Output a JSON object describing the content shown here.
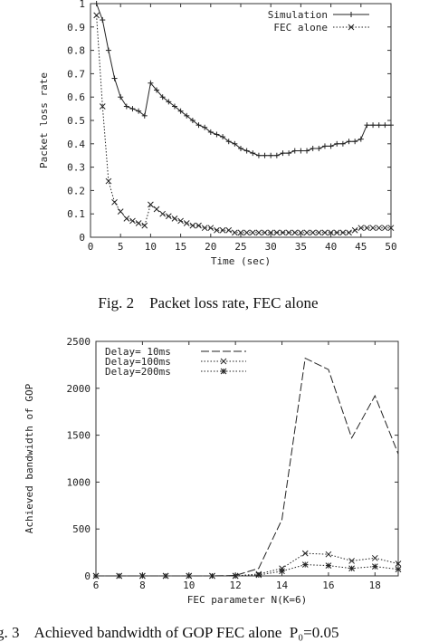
{
  "chart_data": [
    {
      "type": "line",
      "xlabel": "Time (sec)",
      "ylabel": "Packet loss rate",
      "xlim": [
        0,
        50
      ],
      "ylim": [
        0,
        1
      ],
      "xticks": [
        "0",
        "5",
        "10",
        "15",
        "20",
        "25",
        "30",
        "35",
        "40",
        "45",
        "50"
      ],
      "yticks": [
        "0",
        "0.1",
        "0.2",
        "0.3",
        "0.4",
        "0.5",
        "0.6",
        "0.7",
        "0.8",
        "0.9",
        "1"
      ],
      "grid": false,
      "legend_position": "top-right",
      "series": [
        {
          "name": "Simulation",
          "style": "solid-plus",
          "x": [
            1,
            2,
            3,
            4,
            5,
            6,
            7,
            8,
            9,
            10,
            11,
            12,
            13,
            14,
            15,
            16,
            17,
            18,
            19,
            20,
            21,
            22,
            23,
            24,
            25,
            26,
            27,
            28,
            29,
            30,
            31,
            32,
            33,
            34,
            35,
            36,
            37,
            38,
            39,
            40,
            41,
            42,
            43,
            44,
            45,
            46,
            47,
            48,
            49,
            50
          ],
          "y": [
            1.0,
            0.93,
            0.8,
            0.68,
            0.6,
            0.56,
            0.55,
            0.54,
            0.52,
            0.66,
            0.63,
            0.6,
            0.58,
            0.56,
            0.54,
            0.52,
            0.5,
            0.48,
            0.47,
            0.45,
            0.44,
            0.43,
            0.41,
            0.4,
            0.38,
            0.37,
            0.36,
            0.35,
            0.35,
            0.35,
            0.35,
            0.36,
            0.36,
            0.37,
            0.37,
            0.37,
            0.38,
            0.38,
            0.39,
            0.39,
            0.4,
            0.4,
            0.41,
            0.41,
            0.42,
            0.48,
            0.48,
            0.48,
            0.48,
            0.48
          ]
        },
        {
          "name": "FEC alone",
          "style": "dotted-x",
          "x": [
            1,
            2,
            3,
            4,
            5,
            6,
            7,
            8,
            9,
            10,
            11,
            12,
            13,
            14,
            15,
            16,
            17,
            18,
            19,
            20,
            21,
            22,
            23,
            24,
            25,
            26,
            27,
            28,
            29,
            30,
            31,
            32,
            33,
            34,
            35,
            36,
            37,
            38,
            39,
            40,
            41,
            42,
            43,
            44,
            45,
            46,
            47,
            48,
            49,
            50
          ],
          "y": [
            0.95,
            0.56,
            0.24,
            0.15,
            0.11,
            0.08,
            0.07,
            0.06,
            0.05,
            0.14,
            0.12,
            0.1,
            0.09,
            0.08,
            0.07,
            0.06,
            0.05,
            0.05,
            0.04,
            0.04,
            0.03,
            0.03,
            0.03,
            0.02,
            0.02,
            0.02,
            0.02,
            0.02,
            0.02,
            0.02,
            0.02,
            0.02,
            0.02,
            0.02,
            0.02,
            0.02,
            0.02,
            0.02,
            0.02,
            0.02,
            0.02,
            0.02,
            0.02,
            0.03,
            0.04,
            0.04,
            0.04,
            0.04,
            0.04,
            0.04
          ]
        }
      ]
    },
    {
      "type": "line",
      "xlabel": "FEC parameter N(K=6)",
      "ylabel": "Achieved bandwidth of GOP",
      "xlim": [
        6,
        19
      ],
      "ylim": [
        0,
        2500
      ],
      "xticks": [
        "6",
        "8",
        "10",
        "12",
        "14",
        "16",
        "18"
      ],
      "yticks": [
        "0",
        "500",
        "1000",
        "1500",
        "2000",
        "2500"
      ],
      "grid": false,
      "legend_position": "top-left",
      "series": [
        {
          "name": "Delay= 10ms",
          "style": "dashed",
          "x": [
            6,
            7,
            8,
            9,
            10,
            11,
            12,
            13,
            14,
            15,
            16,
            17,
            18,
            19
          ],
          "y": [
            0,
            0,
            0,
            0,
            0,
            0,
            5,
            80,
            600,
            2320,
            2200,
            1470,
            1920,
            1300
          ]
        },
        {
          "name": "Delay=100ms",
          "style": "dotted-x",
          "x": [
            6,
            7,
            8,
            9,
            10,
            11,
            12,
            13,
            14,
            15,
            16,
            17,
            18,
            19
          ],
          "y": [
            0,
            0,
            0,
            0,
            0,
            0,
            0,
            20,
            80,
            240,
            230,
            160,
            190,
            130
          ]
        },
        {
          "name": "Delay=200ms",
          "style": "dotted-star",
          "x": [
            6,
            7,
            8,
            9,
            10,
            11,
            12,
            13,
            14,
            15,
            16,
            17,
            18,
            19
          ],
          "y": [
            0,
            0,
            0,
            0,
            0,
            0,
            0,
            10,
            50,
            120,
            110,
            80,
            100,
            70
          ]
        }
      ]
    }
  ],
  "captions": {
    "fig2": "Fig. 2    Packet loss rate, FEC alone",
    "fig3": "g. 3    Achieved bandwidth of GOP FEC alone  P₀=0.05"
  }
}
